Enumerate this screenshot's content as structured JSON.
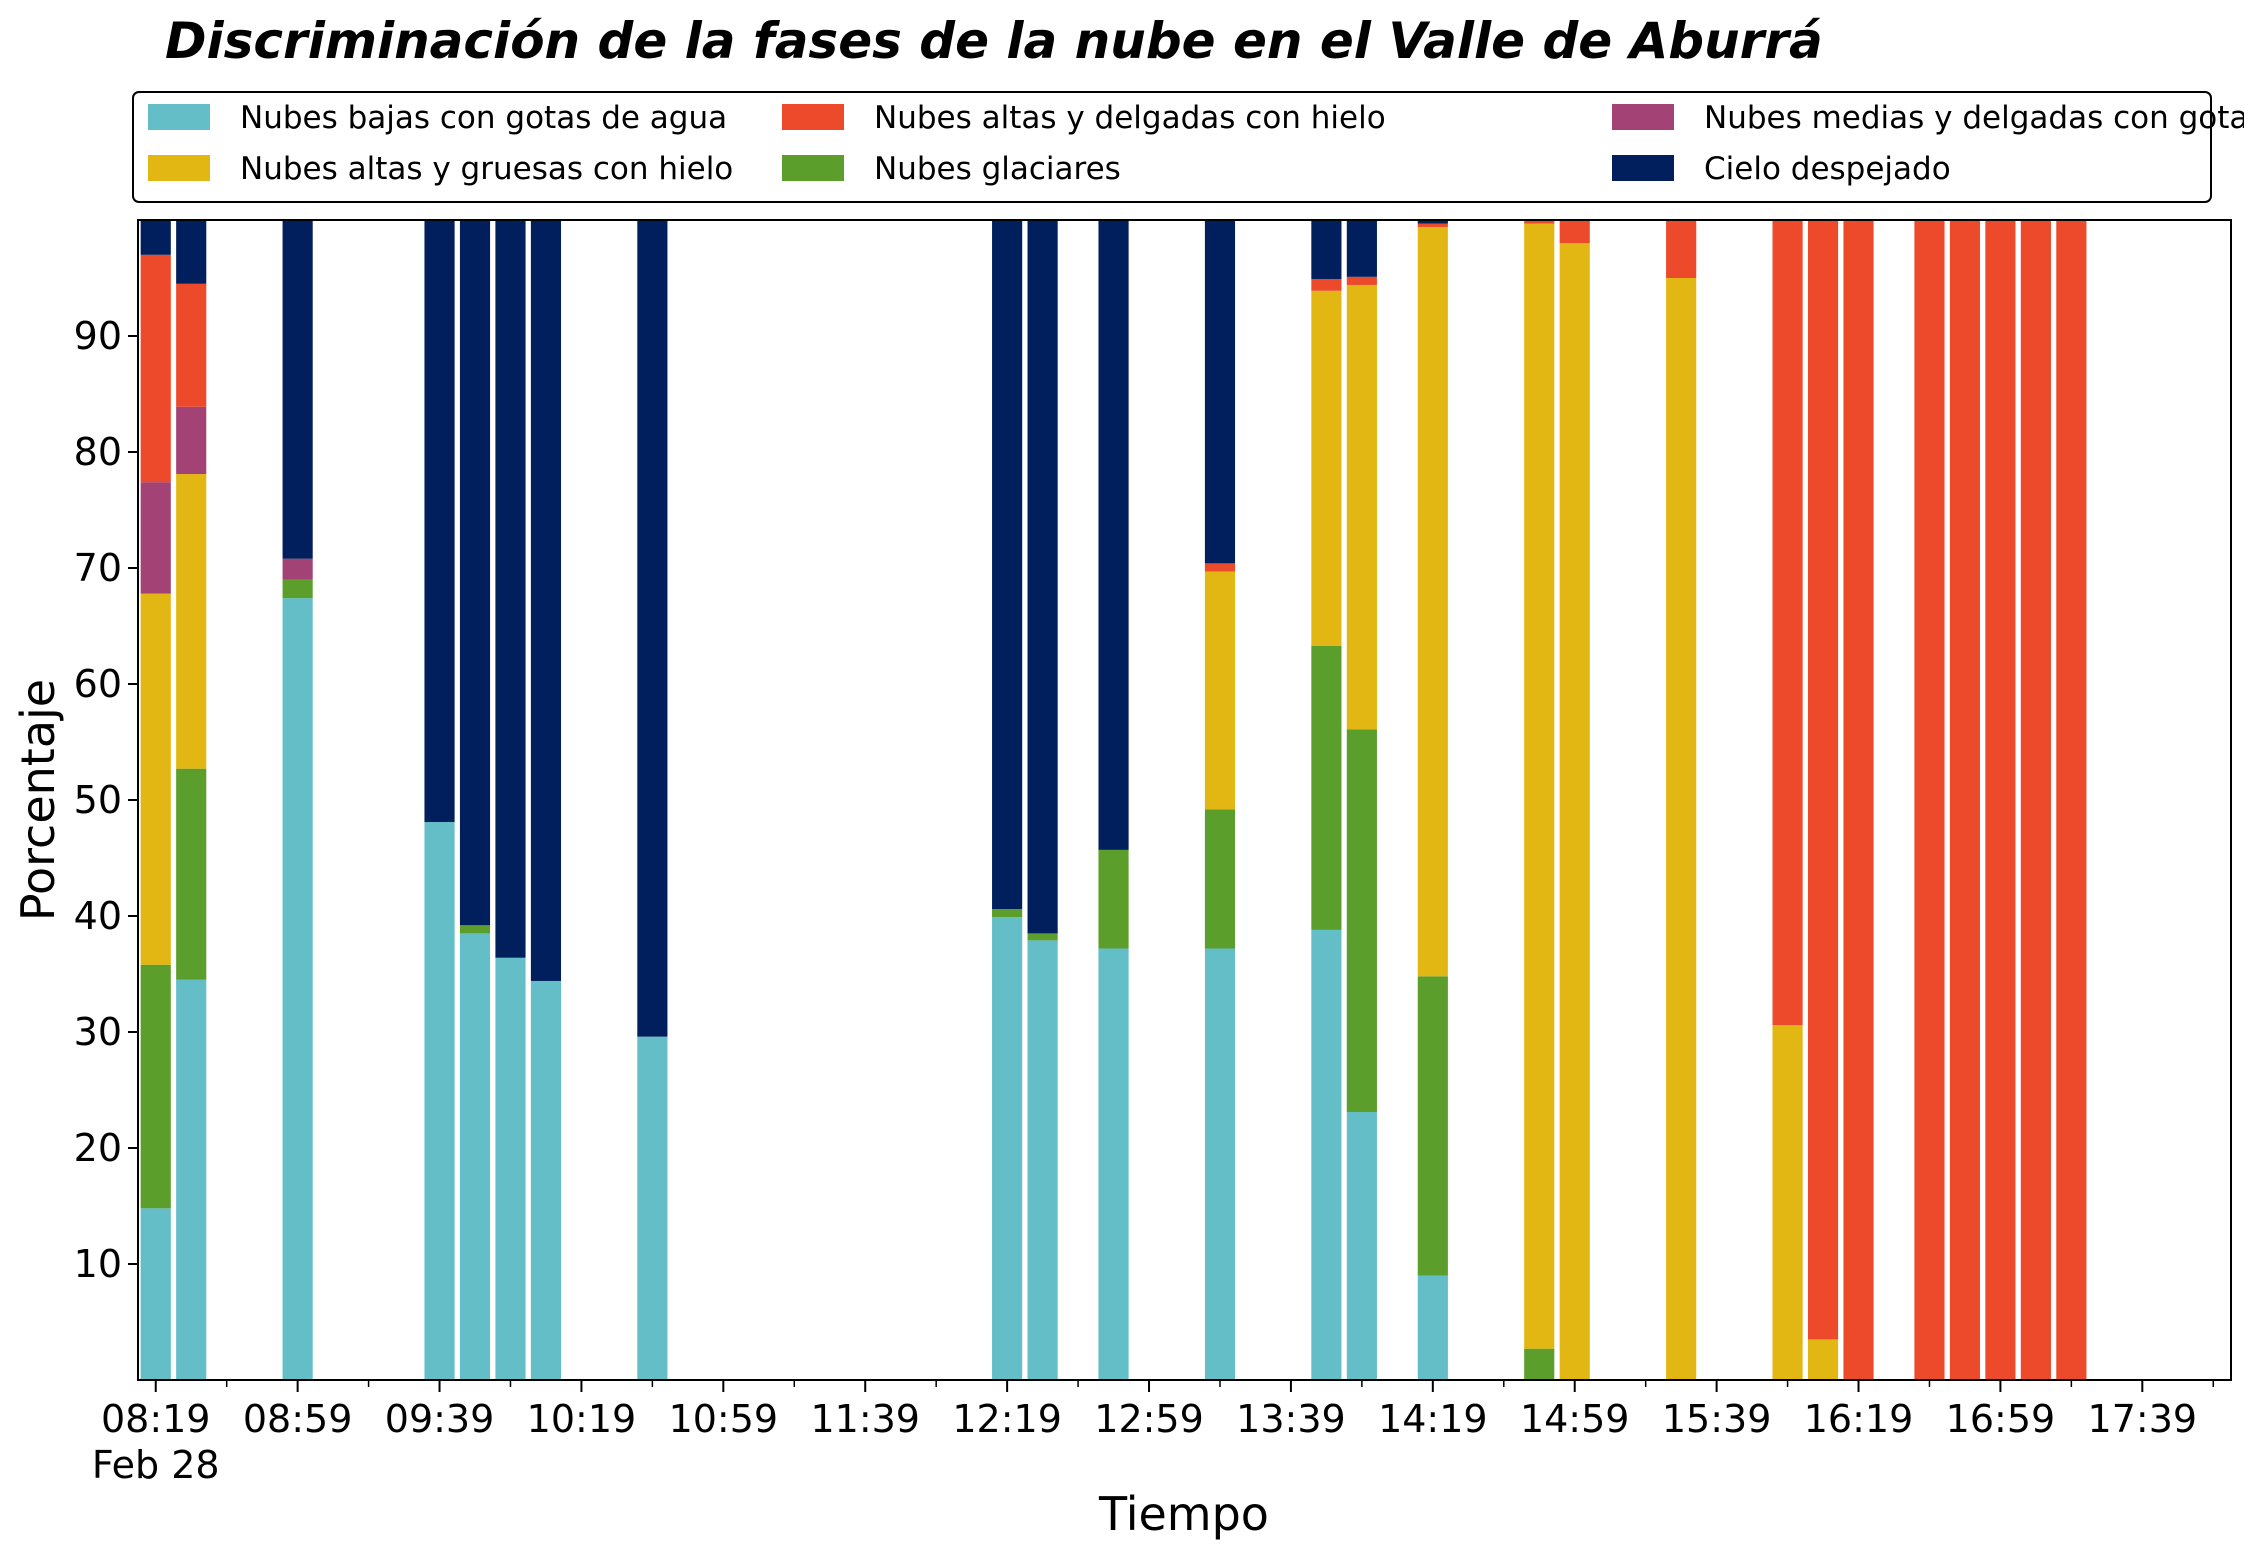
{
  "chart_data": {
    "type": "bar",
    "stacked": true,
    "title": "Discriminación de la fases de la nube en el Valle de Aburrá",
    "xlabel": "Tiempo",
    "ylabel": "Porcentaje",
    "ylim": [
      0,
      100
    ],
    "yticks": [
      10,
      20,
      30,
      40,
      50,
      60,
      70,
      80,
      90
    ],
    "xlim": [
      -0.5,
      58.5
    ],
    "x_labeled_ticks": [
      {
        "x": 0,
        "label": "08:19",
        "sublabel": "Feb 28"
      },
      {
        "x": 4,
        "label": "08:59"
      },
      {
        "x": 8,
        "label": "09:39"
      },
      {
        "x": 12,
        "label": "10:19"
      },
      {
        "x": 16,
        "label": "10:59"
      },
      {
        "x": 20,
        "label": "11:39"
      },
      {
        "x": 24,
        "label": "12:19"
      },
      {
        "x": 28,
        "label": "12:59"
      },
      {
        "x": 32,
        "label": "13:39"
      },
      {
        "x": 36,
        "label": "14:19"
      },
      {
        "x": 40,
        "label": "14:59"
      },
      {
        "x": 44,
        "label": "15:39"
      },
      {
        "x": 48,
        "label": "16:19"
      },
      {
        "x": 52,
        "label": "16:59"
      },
      {
        "x": 56,
        "label": "17:39"
      }
    ],
    "x_minor_ticks": [
      2,
      6,
      10,
      14,
      18,
      22,
      26,
      30,
      34,
      38,
      42,
      46,
      50,
      54,
      58
    ],
    "grid": false,
    "legend_position": "top",
    "series": [
      {
        "name": "Nubes bajas con gotas de agua",
        "color": "#63bec8"
      },
      {
        "name": "Nubes glaciares",
        "color": "#5c9e2b"
      },
      {
        "name": "Nubes altas y gruesas con hielo",
        "color": "#e2b714"
      },
      {
        "name": "Nubes medias y delgadas con gotas de agua",
        "color": "#a24275"
      },
      {
        "name": "Nubes altas y delgadas con hielo",
        "color": "#ec4a2b"
      },
      {
        "name": "Cielo despejado",
        "color": "#001f5c"
      }
    ],
    "legend_order": [
      0,
      2,
      4,
      1,
      3,
      5
    ],
    "bars": [
      {
        "x": 0,
        "values": [
          14.8,
          21.0,
          32.0,
          9.6,
          19.6,
          3.0
        ]
      },
      {
        "x": 1,
        "values": [
          34.5,
          18.2,
          25.4,
          5.8,
          10.6,
          5.5
        ]
      },
      {
        "x": 4,
        "values": [
          67.4,
          1.6,
          0,
          1.8,
          0,
          29.2
        ]
      },
      {
        "x": 8,
        "values": [
          48.1,
          0,
          0,
          0,
          0,
          51.9
        ]
      },
      {
        "x": 9,
        "values": [
          38.5,
          0.7,
          0,
          0,
          0,
          60.8
        ]
      },
      {
        "x": 10,
        "values": [
          36.4,
          0,
          0,
          0,
          0,
          63.6
        ]
      },
      {
        "x": 11,
        "values": [
          34.4,
          0,
          0,
          0,
          0,
          65.6
        ]
      },
      {
        "x": 14,
        "values": [
          29.6,
          0,
          0,
          0,
          0,
          70.4
        ]
      },
      {
        "x": 24,
        "values": [
          39.9,
          0.7,
          0,
          0,
          0,
          59.4
        ]
      },
      {
        "x": 25,
        "values": [
          37.9,
          0.6,
          0,
          0,
          0,
          61.5
        ]
      },
      {
        "x": 27,
        "values": [
          37.2,
          8.5,
          0,
          0,
          0,
          54.3
        ]
      },
      {
        "x": 30,
        "values": [
          37.2,
          12.0,
          20.5,
          0,
          0.7,
          29.6
        ]
      },
      {
        "x": 33,
        "values": [
          38.8,
          24.5,
          30.6,
          0,
          1.0,
          5.1
        ]
      },
      {
        "x": 34,
        "values": [
          23.1,
          33.0,
          38.3,
          0,
          0.7,
          4.9
        ]
      },
      {
        "x": 36,
        "values": [
          9.0,
          25.8,
          64.6,
          0,
          0.3,
          0.3
        ]
      },
      {
        "x": 39,
        "values": [
          0,
          2.7,
          97.0,
          0,
          0.3,
          0
        ]
      },
      {
        "x": 40,
        "values": [
          0,
          0,
          98.0,
          0,
          2.0,
          0
        ]
      },
      {
        "x": 43,
        "values": [
          0,
          0,
          95.0,
          0,
          5.0,
          0
        ]
      },
      {
        "x": 46,
        "values": [
          0,
          0,
          30.6,
          0,
          69.4,
          0
        ]
      },
      {
        "x": 47,
        "values": [
          0,
          0,
          3.5,
          0,
          96.5,
          0
        ]
      },
      {
        "x": 48,
        "values": [
          0,
          0,
          0,
          0,
          100,
          0
        ]
      },
      {
        "x": 50,
        "values": [
          0,
          0,
          0,
          0,
          100,
          0
        ]
      },
      {
        "x": 51,
        "values": [
          0,
          0,
          0,
          0,
          100,
          0
        ]
      },
      {
        "x": 52,
        "values": [
          0,
          0,
          0,
          0,
          100,
          0
        ]
      },
      {
        "x": 53,
        "values": [
          0,
          0,
          0,
          0,
          100,
          0
        ]
      },
      {
        "x": 54,
        "values": [
          0,
          0,
          0,
          0,
          100,
          0
        ]
      }
    ]
  }
}
